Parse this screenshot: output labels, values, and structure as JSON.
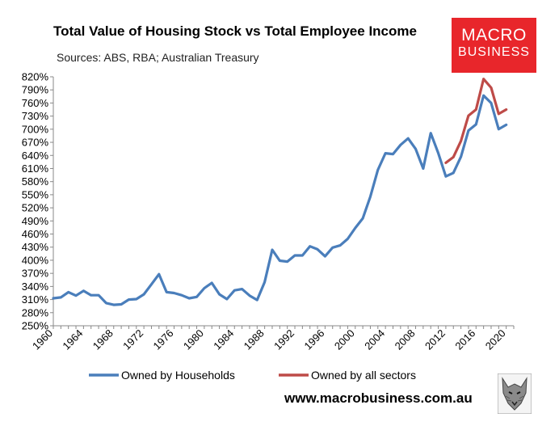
{
  "header": {
    "title": "Total Value of Housing Stock vs Total Employee Income",
    "subtitle": "Sources: ABS, RBA; Australian Treasury"
  },
  "logo": {
    "line1": "MACRO",
    "line2": "BUSINESS"
  },
  "footer": {
    "url": "www.macrobusiness.com.au"
  },
  "colors": {
    "households": "#4a7ebb",
    "all_sectors": "#be4b48"
  },
  "chart_data": {
    "type": "line",
    "title": "Total Value of Housing Stock vs Total Employee Income",
    "xlabel": "",
    "ylabel": "",
    "xlim": [
      1960,
      2021
    ],
    "ylim": [
      250,
      820
    ],
    "y_ticks": [
      250,
      280,
      310,
      340,
      370,
      400,
      430,
      460,
      490,
      520,
      550,
      580,
      610,
      640,
      670,
      700,
      730,
      760,
      790,
      820
    ],
    "y_tick_labels": [
      "250%",
      "280%",
      "310%",
      "340%",
      "370%",
      "400%",
      "430%",
      "460%",
      "490%",
      "520%",
      "550%",
      "580%",
      "610%",
      "640%",
      "670%",
      "700%",
      "730%",
      "760%",
      "790%",
      "820%"
    ],
    "x_ticks": [
      1960,
      1964,
      1968,
      1972,
      1976,
      1980,
      1984,
      1988,
      1992,
      1996,
      2000,
      2004,
      2008,
      2012,
      2016,
      2020
    ],
    "x_tick_labels": [
      "1960",
      "1964",
      "1968",
      "1972",
      "1976",
      "1980",
      "1984",
      "1988",
      "1992",
      "1996",
      "2000",
      "2004",
      "2008",
      "2012",
      "2016",
      "2020"
    ],
    "grid": false,
    "legend": "bottom",
    "series": [
      {
        "name": "Owned by Households",
        "x": [
          1960,
          1961,
          1962,
          1963,
          1964,
          1965,
          1966,
          1967,
          1968,
          1969,
          1970,
          1971,
          1972,
          1973,
          1974,
          1975,
          1976,
          1977,
          1978,
          1979,
          1980,
          1981,
          1982,
          1983,
          1984,
          1985,
          1986,
          1987,
          1988,
          1989,
          1990,
          1991,
          1992,
          1993,
          1994,
          1995,
          1996,
          1997,
          1998,
          1999,
          2000,
          2001,
          2002,
          2003,
          2004,
          2005,
          2006,
          2007,
          2008,
          2009,
          2010,
          2011,
          2012,
          2013,
          2014,
          2015,
          2016,
          2017,
          2018,
          2019,
          2020
        ],
        "values": [
          313,
          315,
          327,
          319,
          330,
          320,
          320,
          302,
          298,
          299,
          310,
          311,
          322,
          345,
          368,
          327,
          325,
          320,
          313,
          316,
          336,
          348,
          322,
          311,
          331,
          334,
          319,
          309,
          350,
          424,
          399,
          397,
          411,
          411,
          432,
          425,
          409,
          429,
          434,
          449,
          474,
          496,
          546,
          607,
          645,
          643,
          664,
          679,
          655,
          610,
          691,
          645,
          592,
          600,
          637,
          697,
          711,
          777,
          760,
          700,
          710
        ]
      },
      {
        "name": "Owned by all sectors",
        "x": [
          2012,
          2013,
          2014,
          2015,
          2016,
          2017,
          2018,
          2019,
          2020
        ],
        "values": [
          623,
          636,
          673,
          731,
          745,
          815,
          795,
          735,
          745
        ]
      }
    ]
  }
}
